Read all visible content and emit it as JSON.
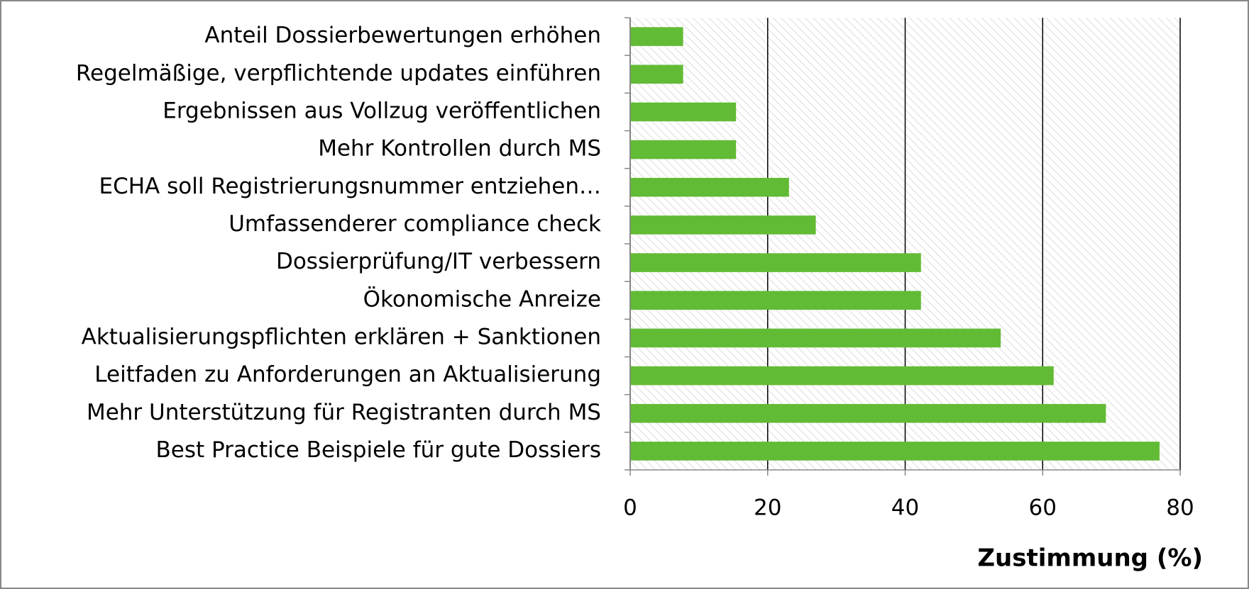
{
  "chart_data": {
    "type": "barh",
    "categories": [
      "Anteil Dossierbewertungen erhöhen",
      "Regelmäßige, verpflichtende updates einführen",
      "Ergebnissen aus Vollzug veröffentlichen",
      "Mehr Kontrollen durch MS",
      "ECHA soll Registrierungsnummer entziehen…",
      "Umfassenderer compliance check",
      "Dossierprüfung/IT verbessern",
      "Ökonomische Anreize",
      "Aktualisierungspflichten erklären + Sanktionen",
      "Leitfaden zu Anforderungen an Aktualisierung",
      "Mehr Unterstützung für Registranten durch MS",
      "Best Practice Beispiele für gute Dossiers"
    ],
    "values": [
      7.7,
      7.7,
      15.4,
      15.4,
      23.1,
      27.0,
      42.3,
      42.3,
      53.9,
      61.6,
      69.2,
      77.0
    ],
    "color": "#62bb35",
    "xlabel": "Zustimmung (%)",
    "xlim": [
      0,
      80
    ],
    "xticks": [
      0,
      20,
      40,
      60,
      80
    ],
    "grid": true
  }
}
